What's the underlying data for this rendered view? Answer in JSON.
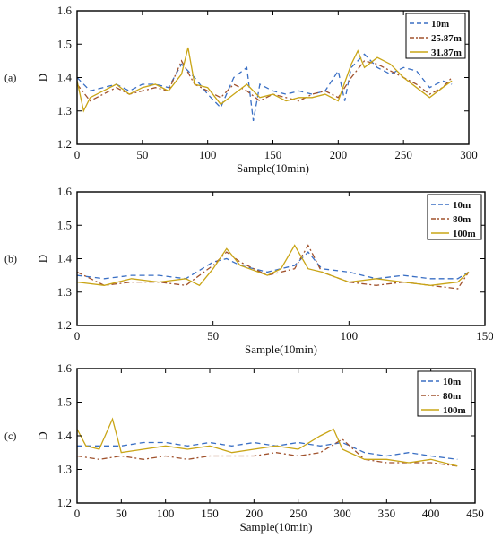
{
  "chart_data": [
    {
      "type": "line",
      "panel_label": "(a)",
      "xlabel": "Sample(10min)",
      "ylabel": "D",
      "xlim": [
        0,
        300
      ],
      "ylim": [
        1.2,
        1.6
      ],
      "xticks": [
        0,
        50,
        100,
        150,
        200,
        250,
        300
      ],
      "yticks": [
        1.2,
        1.3,
        1.4,
        1.5,
        1.6
      ],
      "legend_position": "top-right",
      "grid": false,
      "series": [
        {
          "name": "10m",
          "color": "#3a6fc4",
          "dash": "dashed",
          "x": [
            0,
            10,
            20,
            30,
            40,
            50,
            60,
            70,
            80,
            90,
            100,
            110,
            120,
            130,
            135,
            140,
            150,
            160,
            170,
            180,
            190,
            200,
            205,
            210,
            220,
            230,
            240,
            250,
            260,
            270,
            280,
            287
          ],
          "y": [
            1.4,
            1.36,
            1.37,
            1.38,
            1.36,
            1.38,
            1.38,
            1.37,
            1.44,
            1.4,
            1.35,
            1.31,
            1.4,
            1.43,
            1.27,
            1.38,
            1.36,
            1.35,
            1.36,
            1.35,
            1.36,
            1.42,
            1.33,
            1.43,
            1.47,
            1.43,
            1.41,
            1.43,
            1.42,
            1.37,
            1.39,
            1.38
          ]
        },
        {
          "name": "25.87m",
          "color": "#a0522d",
          "dash": "dashdot",
          "x": [
            0,
            10,
            20,
            30,
            40,
            50,
            60,
            70,
            80,
            90,
            100,
            110,
            120,
            130,
            140,
            150,
            160,
            170,
            180,
            190,
            200,
            210,
            220,
            230,
            240,
            250,
            260,
            270,
            280,
            287
          ],
          "y": [
            1.38,
            1.33,
            1.35,
            1.37,
            1.35,
            1.36,
            1.37,
            1.36,
            1.45,
            1.38,
            1.36,
            1.34,
            1.38,
            1.36,
            1.33,
            1.35,
            1.34,
            1.33,
            1.35,
            1.36,
            1.34,
            1.4,
            1.45,
            1.44,
            1.42,
            1.4,
            1.38,
            1.35,
            1.37,
            1.4
          ]
        },
        {
          "name": "31.87m",
          "color": "#c9a516",
          "dash": "solid",
          "x": [
            0,
            5,
            10,
            20,
            30,
            40,
            50,
            60,
            70,
            80,
            85,
            90,
            100,
            110,
            120,
            130,
            140,
            150,
            160,
            170,
            180,
            190,
            200,
            210,
            215,
            220,
            230,
            240,
            250,
            260,
            270,
            280,
            287
          ],
          "y": [
            1.39,
            1.3,
            1.34,
            1.36,
            1.38,
            1.35,
            1.37,
            1.38,
            1.36,
            1.41,
            1.49,
            1.38,
            1.37,
            1.32,
            1.35,
            1.38,
            1.34,
            1.35,
            1.33,
            1.34,
            1.34,
            1.35,
            1.33,
            1.44,
            1.48,
            1.43,
            1.46,
            1.44,
            1.4,
            1.37,
            1.34,
            1.37,
            1.39
          ]
        }
      ]
    },
    {
      "type": "line",
      "panel_label": "(b)",
      "xlabel": "Sample(10min)",
      "ylabel": "D",
      "xlim": [
        0,
        150
      ],
      "ylim": [
        1.2,
        1.6
      ],
      "xticks": [
        0,
        50,
        100,
        150
      ],
      "yticks": [
        1.2,
        1.3,
        1.4,
        1.5,
        1.6
      ],
      "legend_position": "top-right",
      "grid": false,
      "series": [
        {
          "name": "10m",
          "color": "#3a6fc4",
          "dash": "dashed",
          "x": [
            0,
            10,
            20,
            30,
            40,
            50,
            55,
            60,
            70,
            80,
            85,
            90,
            100,
            110,
            120,
            130,
            140,
            144
          ],
          "y": [
            1.35,
            1.34,
            1.35,
            1.35,
            1.34,
            1.39,
            1.4,
            1.38,
            1.36,
            1.38,
            1.42,
            1.37,
            1.36,
            1.34,
            1.35,
            1.34,
            1.34,
            1.36
          ]
        },
        {
          "name": "80m",
          "color": "#a0522d",
          "dash": "dashdot",
          "x": [
            0,
            10,
            20,
            30,
            40,
            50,
            55,
            60,
            70,
            80,
            85,
            90,
            100,
            110,
            120,
            130,
            140,
            144
          ],
          "y": [
            1.36,
            1.32,
            1.33,
            1.33,
            1.32,
            1.38,
            1.42,
            1.39,
            1.35,
            1.37,
            1.44,
            1.36,
            1.33,
            1.32,
            1.33,
            1.32,
            1.31,
            1.36
          ]
        },
        {
          "name": "100m",
          "color": "#c9a516",
          "dash": "solid",
          "x": [
            0,
            10,
            20,
            30,
            40,
            45,
            50,
            55,
            60,
            70,
            75,
            80,
            85,
            90,
            100,
            110,
            120,
            130,
            140,
            144
          ],
          "y": [
            1.33,
            1.32,
            1.34,
            1.33,
            1.34,
            1.32,
            1.37,
            1.43,
            1.38,
            1.35,
            1.37,
            1.44,
            1.37,
            1.36,
            1.33,
            1.34,
            1.33,
            1.32,
            1.33,
            1.36
          ]
        }
      ]
    },
    {
      "type": "line",
      "panel_label": "(c)",
      "xlabel": "Sample(10min)",
      "ylabel": "D",
      "xlim": [
        0,
        450
      ],
      "ylim": [
        1.2,
        1.6
      ],
      "xticks": [
        0,
        50,
        100,
        150,
        200,
        250,
        300,
        350,
        400,
        450
      ],
      "yticks": [
        1.2,
        1.3,
        1.4,
        1.5,
        1.6
      ],
      "legend_position": "top-right",
      "grid": false,
      "series": [
        {
          "name": "10m",
          "color": "#3a6fc4",
          "dash": "dashed",
          "x": [
            0,
            25,
            50,
            75,
            100,
            125,
            150,
            175,
            200,
            225,
            250,
            275,
            300,
            325,
            350,
            375,
            400,
            430
          ],
          "y": [
            1.37,
            1.37,
            1.37,
            1.38,
            1.38,
            1.37,
            1.38,
            1.37,
            1.38,
            1.37,
            1.38,
            1.37,
            1.38,
            1.35,
            1.34,
            1.35,
            1.34,
            1.33
          ]
        },
        {
          "name": "80m",
          "color": "#a0522d",
          "dash": "dashdot",
          "x": [
            0,
            25,
            50,
            75,
            100,
            125,
            150,
            175,
            200,
            225,
            250,
            275,
            300,
            325,
            350,
            375,
            400,
            430
          ],
          "y": [
            1.34,
            1.33,
            1.34,
            1.33,
            1.34,
            1.33,
            1.34,
            1.34,
            1.34,
            1.35,
            1.34,
            1.35,
            1.39,
            1.33,
            1.32,
            1.32,
            1.32,
            1.31
          ]
        },
        {
          "name": "100m",
          "color": "#c9a516",
          "dash": "solid",
          "x": [
            0,
            10,
            25,
            40,
            50,
            75,
            100,
            125,
            150,
            175,
            200,
            225,
            250,
            275,
            290,
            300,
            325,
            350,
            375,
            400,
            430
          ],
          "y": [
            1.42,
            1.37,
            1.36,
            1.45,
            1.35,
            1.36,
            1.37,
            1.36,
            1.37,
            1.35,
            1.36,
            1.37,
            1.36,
            1.4,
            1.42,
            1.36,
            1.33,
            1.33,
            1.32,
            1.33,
            1.31
          ]
        }
      ]
    }
  ]
}
